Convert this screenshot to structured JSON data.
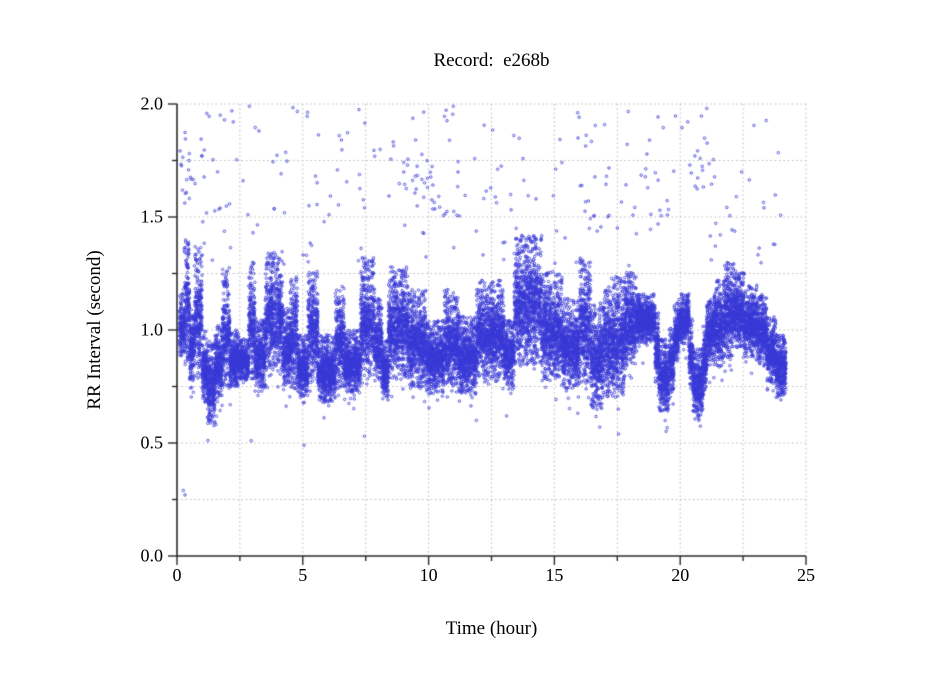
{
  "chart_data": {
    "type": "scatter",
    "title": "Record:  e268b",
    "xlabel": "Time (hour)",
    "ylabel": "RR Interval (second)",
    "xlim": [
      0,
      25
    ],
    "ylim": [
      0,
      2
    ],
    "x_major_ticks": [
      0,
      5,
      10,
      15,
      20,
      25
    ],
    "x_tick_labels": [
      "0",
      "5",
      "10",
      "15",
      "20",
      "25"
    ],
    "x_minor_tick_step": 2.5,
    "y_major_ticks": [
      0,
      0.5,
      1,
      1.5,
      2
    ],
    "y_tick_labels": [
      "0.0",
      "0.5",
      "1.0",
      "1.5",
      "2.0"
    ],
    "y_minor_tick_step": 0.25,
    "grid": {
      "style": "dotted",
      "color": "#b8b8b8",
      "x_step": 2.5,
      "y_step": 0.25
    },
    "axis_color": "#2b2b2b",
    "legend": "none",
    "marker": {
      "shape": "open-circle",
      "color": "#3838d6",
      "radius_px": 1.25
    },
    "scatter_model": {
      "seed": 1234,
      "points_per_hour": 850,
      "band_segments": [
        [
          0.1,
          0.3,
          0.88,
          1.18
        ],
        [
          0.3,
          0.5,
          0.85,
          1.42
        ],
        [
          0.5,
          0.7,
          0.75,
          1.1
        ],
        [
          0.7,
          1.0,
          0.78,
          1.38
        ],
        [
          1.0,
          1.2,
          0.68,
          1.0
        ],
        [
          1.2,
          1.5,
          0.58,
          0.95
        ],
        [
          1.5,
          1.8,
          0.68,
          1.02
        ],
        [
          1.8,
          2.1,
          0.74,
          1.28
        ],
        [
          2.1,
          2.45,
          0.75,
          1.0
        ],
        [
          2.45,
          2.85,
          0.78,
          0.96
        ],
        [
          2.85,
          3.1,
          0.78,
          1.3
        ],
        [
          3.1,
          3.5,
          0.74,
          1.05
        ],
        [
          3.5,
          4.2,
          0.8,
          1.35
        ],
        [
          4.2,
          4.5,
          0.75,
          1.1
        ],
        [
          4.5,
          4.8,
          0.74,
          1.25
        ],
        [
          4.8,
          5.2,
          0.7,
          0.98
        ],
        [
          5.2,
          5.6,
          0.78,
          1.26
        ],
        [
          5.6,
          6.3,
          0.68,
          0.98
        ],
        [
          6.3,
          6.65,
          0.74,
          1.2
        ],
        [
          6.65,
          7.3,
          0.72,
          1.0
        ],
        [
          7.3,
          7.85,
          0.78,
          1.32
        ],
        [
          7.85,
          8.15,
          0.76,
          1.14
        ],
        [
          8.15,
          8.4,
          0.7,
          0.96
        ],
        [
          8.4,
          9.2,
          0.78,
          1.28
        ],
        [
          9.2,
          9.9,
          0.74,
          1.18
        ],
        [
          9.9,
          10.6,
          0.72,
          1.04
        ],
        [
          10.6,
          11.2,
          0.75,
          1.18
        ],
        [
          11.2,
          11.9,
          0.72,
          1.06
        ],
        [
          11.9,
          13.0,
          0.78,
          1.22
        ],
        [
          13.0,
          13.4,
          0.75,
          1.05
        ],
        [
          13.4,
          14.5,
          0.84,
          1.42
        ],
        [
          14.5,
          15.3,
          0.78,
          1.26
        ],
        [
          15.3,
          16.0,
          0.74,
          1.14
        ],
        [
          16.0,
          16.45,
          0.76,
          1.32
        ],
        [
          16.45,
          16.95,
          0.65,
          1.12
        ],
        [
          16.95,
          17.8,
          0.7,
          1.24
        ],
        [
          17.8,
          18.25,
          0.84,
          1.26
        ],
        [
          18.25,
          19.0,
          0.94,
          1.16
        ],
        [
          19.0,
          19.15,
          0.76,
          1.08
        ],
        [
          19.15,
          19.55,
          0.64,
          0.96
        ],
        [
          19.55,
          19.75,
          0.72,
          1.02
        ],
        [
          19.75,
          19.95,
          0.86,
          1.12
        ],
        [
          19.95,
          20.35,
          0.94,
          1.16
        ],
        [
          20.35,
          20.5,
          0.74,
          1.05
        ],
        [
          20.5,
          20.9,
          0.6,
          0.92
        ],
        [
          20.9,
          21.05,
          0.72,
          1.02
        ],
        [
          21.05,
          21.3,
          0.86,
          1.14
        ],
        [
          21.3,
          21.75,
          0.84,
          1.22
        ],
        [
          21.75,
          22.15,
          0.88,
          1.3
        ],
        [
          22.15,
          22.55,
          0.92,
          1.26
        ],
        [
          22.55,
          23.05,
          0.88,
          1.2
        ],
        [
          23.05,
          23.45,
          0.84,
          1.16
        ],
        [
          23.45,
          23.8,
          0.76,
          1.06
        ],
        [
          23.8,
          24.2,
          0.7,
          0.98
        ]
      ],
      "low_outliers": [
        [
          0.25,
          0.29
        ],
        [
          0.32,
          0.27
        ],
        [
          2.95,
          0.51
        ],
        [
          5.05,
          0.49
        ],
        [
          7.45,
          0.53
        ],
        [
          11.9,
          0.6
        ],
        [
          13.1,
          0.62
        ],
        [
          16.8,
          0.57
        ],
        [
          17.55,
          0.54
        ]
      ],
      "high_outliers_uniform": {
        "t_range": [
          0.15,
          24.1
        ],
        "rr_range": [
          1.5,
          2.0
        ],
        "count": 170
      },
      "high_outlier_clusters": [
        {
          "t_range": [
            9.0,
            10.4
          ],
          "rr_range": [
            1.56,
            1.76
          ],
          "count": 22
        },
        {
          "t_range": [
            0.1,
            1.1
          ],
          "rr_range": [
            1.58,
            1.88
          ],
          "count": 16
        },
        {
          "t_range": [
            20.3,
            21.6
          ],
          "rr_range": [
            1.62,
            1.85
          ],
          "count": 12
        }
      ],
      "mid_outliers": {
        "t_range": [
          0.15,
          24.1
        ],
        "rr_range": [
          1.28,
          1.55
        ],
        "count": 70
      },
      "low_tail": {
        "count": 130,
        "max_depth": 0.12
      }
    }
  }
}
